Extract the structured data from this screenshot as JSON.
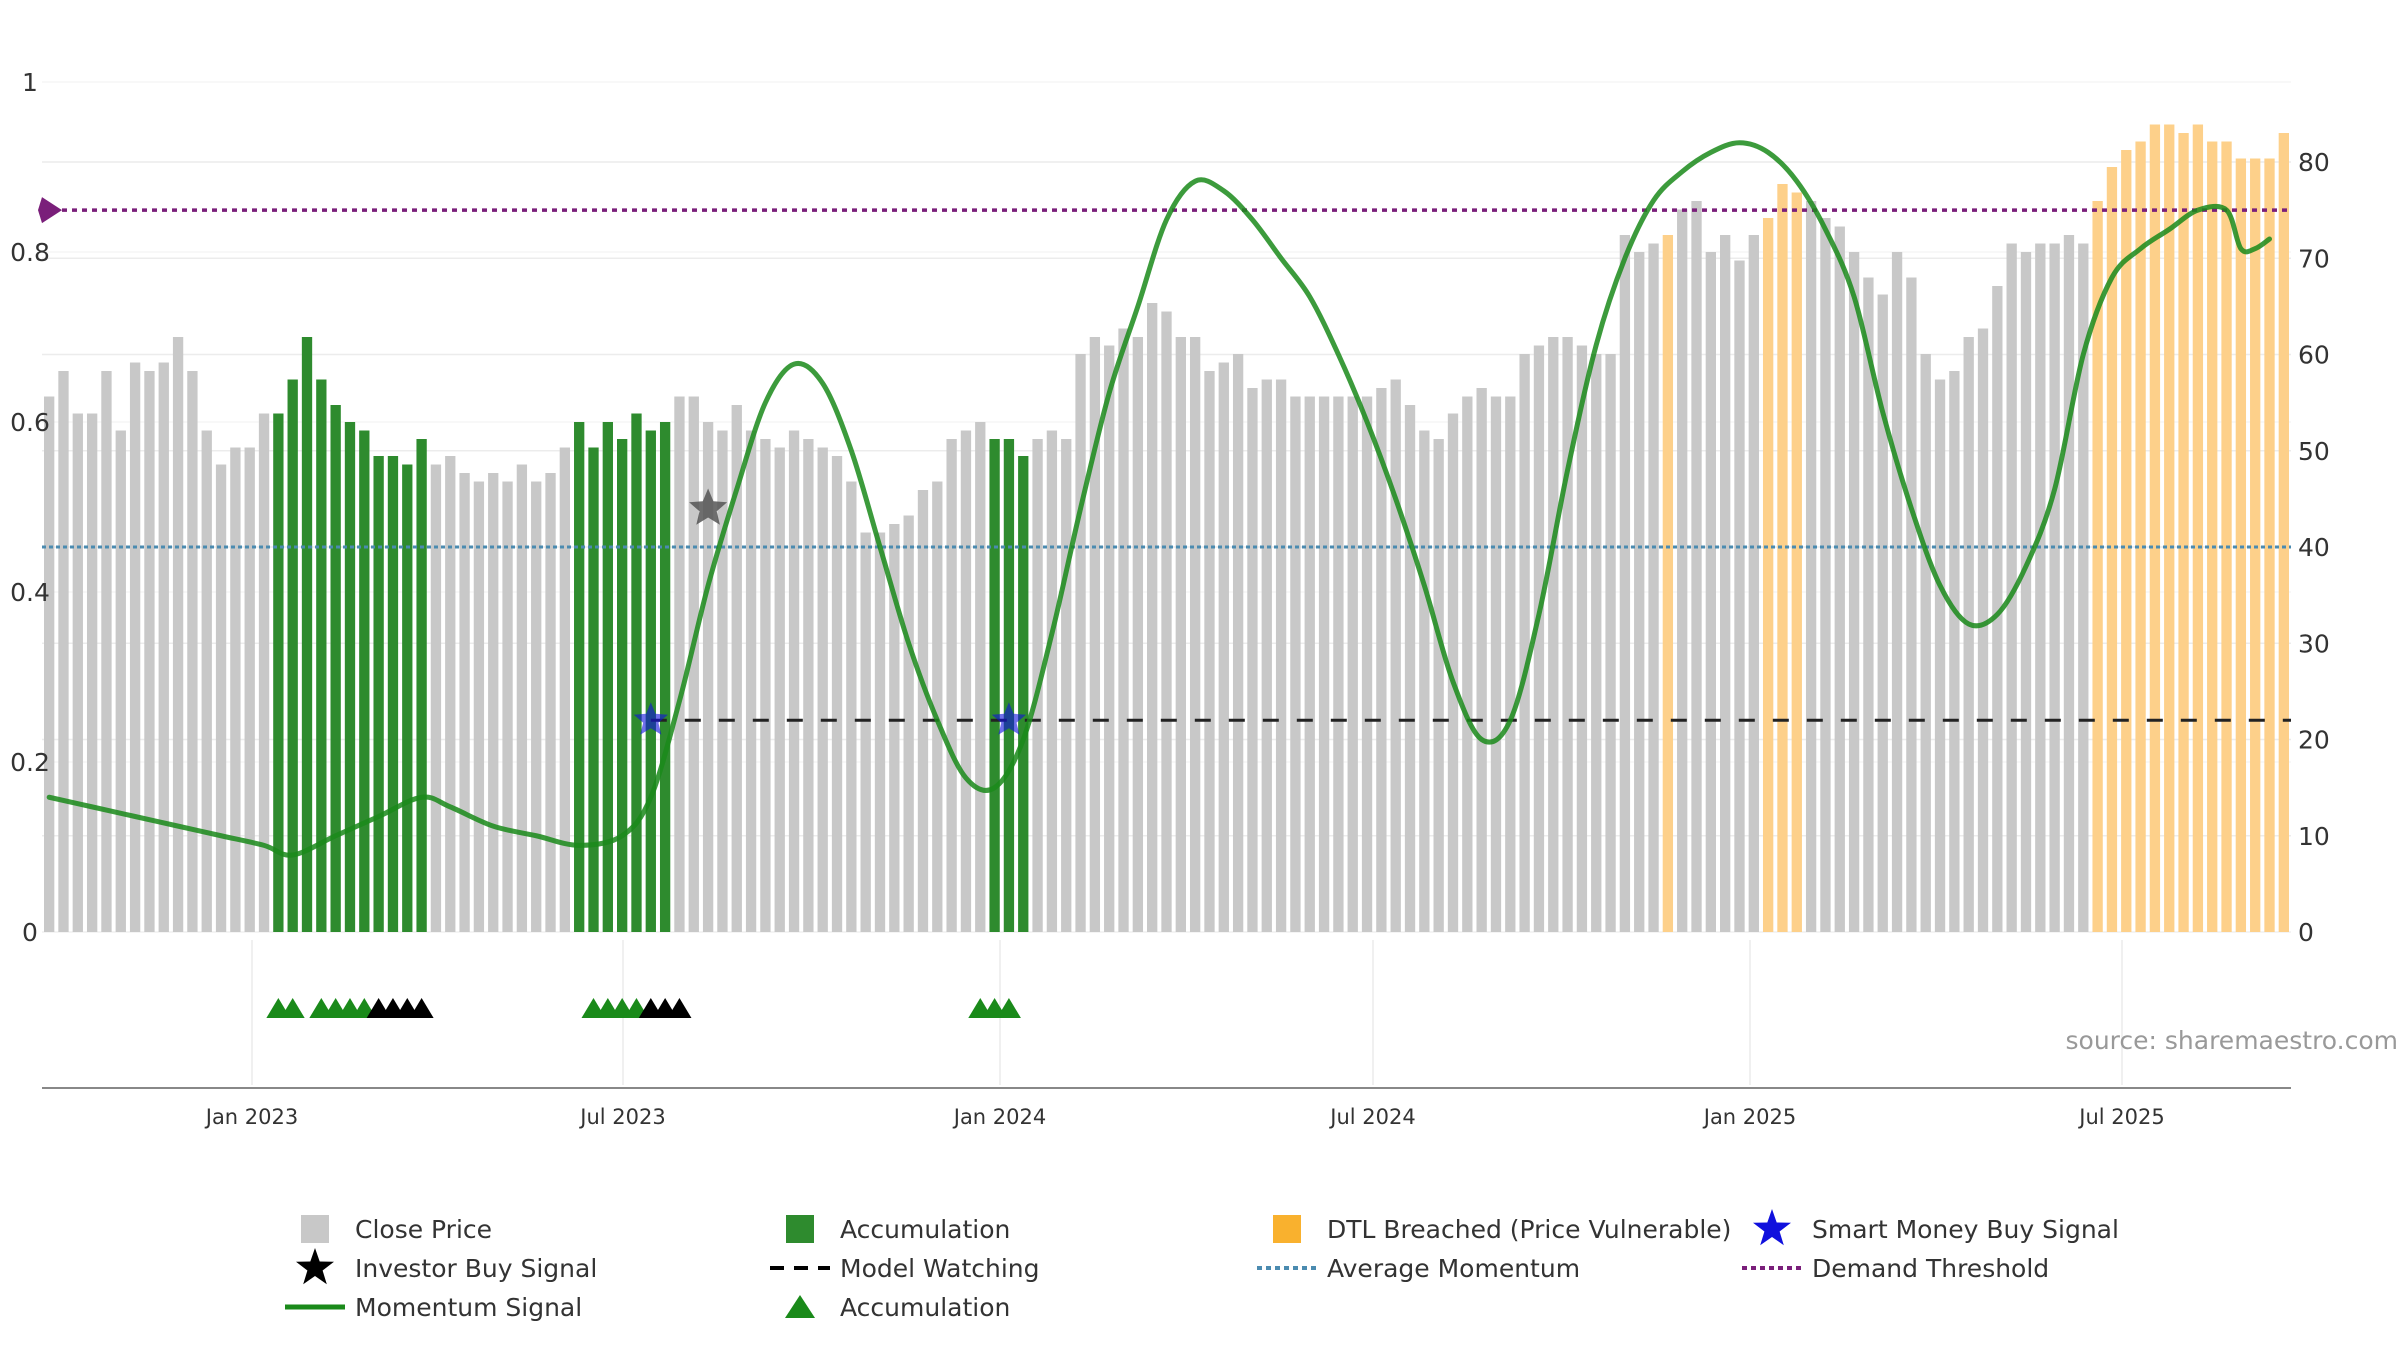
{
  "chart_data": {
    "type": "bar",
    "title": "",
    "source": "source: sharemaestro.com",
    "left_axis": {
      "ticks": [
        "0",
        "0.2",
        "0.4",
        "0.6",
        "0.8",
        "1"
      ],
      "ylim": [
        0,
        1
      ]
    },
    "right_axis": {
      "ticks": [
        "0",
        "10",
        "20",
        "30",
        "40",
        "50",
        "60",
        "70",
        "80"
      ],
      "ylim": [
        0,
        88
      ]
    },
    "x_axis": {
      "ticks": [
        "Jan 2023",
        "Jul 2023",
        "Jan 2024",
        "Jul 2024",
        "Jan 2025",
        "Jul 2025"
      ]
    },
    "colors": {
      "close": "#c8c8c8",
      "accumulation": "#2e8b2e",
      "dtl": "#fdd08a",
      "momentum": "#1a8a1a",
      "model_watching": "#222222",
      "average_momentum": "#4b8bb0",
      "demand_threshold": "#7a1f7a",
      "smart_money": "#1010dd",
      "investor_buy": "#555555"
    },
    "close_prices": [
      0.63,
      0.66,
      0.61,
      0.61,
      0.66,
      0.59,
      0.67,
      0.66,
      0.67,
      0.7,
      0.66,
      0.59,
      0.55,
      0.57,
      0.57,
      0.61,
      0.61,
      0.65,
      0.7,
      0.65,
      0.62,
      0.6,
      0.59,
      0.56,
      0.56,
      0.55,
      0.58,
      0.55,
      0.56,
      0.54,
      0.53,
      0.54,
      0.53,
      0.55,
      0.53,
      0.54,
      0.57,
      0.6,
      0.57,
      0.6,
      0.58,
      0.61,
      0.59,
      0.6,
      0.63,
      0.63,
      0.6,
      0.59,
      0.62,
      0.59,
      0.58,
      0.57,
      0.59,
      0.58,
      0.57,
      0.56,
      0.53,
      0.47,
      0.47,
      0.48,
      0.49,
      0.52,
      0.53,
      0.58,
      0.59,
      0.6,
      0.58,
      0.58,
      0.56,
      0.58,
      0.59,
      0.58,
      0.68,
      0.7,
      0.69,
      0.71,
      0.7,
      0.74,
      0.73,
      0.7,
      0.7,
      0.66,
      0.67,
      0.68,
      0.64,
      0.65,
      0.65,
      0.63,
      0.63,
      0.63,
      0.63,
      0.63,
      0.63,
      0.64,
      0.65,
      0.62,
      0.59,
      0.58,
      0.61,
      0.63,
      0.64,
      0.63,
      0.63,
      0.68,
      0.69,
      0.7,
      0.7,
      0.69,
      0.68,
      0.68,
      0.82,
      0.8,
      0.81,
      0.82,
      0.85,
      0.86,
      0.8,
      0.82,
      0.79,
      0.82,
      0.84,
      0.88,
      0.87,
      0.86,
      0.84,
      0.83,
      0.8,
      0.77,
      0.75,
      0.8,
      0.77,
      0.68,
      0.65,
      0.66,
      0.7,
      0.71,
      0.76,
      0.81,
      0.8,
      0.81,
      0.81,
      0.82,
      0.81,
      0.86,
      0.9,
      0.92,
      0.93,
      0.95,
      0.95,
      0.94,
      0.95,
      0.93,
      0.93,
      0.91,
      0.91,
      0.91,
      0.94
    ],
    "accumulation_ranges": [
      [
        16,
        18
      ],
      [
        19,
        26
      ],
      [
        37,
        43
      ],
      [
        66,
        68
      ]
    ],
    "dtl_ranges": [
      [
        113,
        113
      ],
      [
        120,
        122
      ],
      [
        143,
        156
      ]
    ],
    "momentum_signal": [
      [
        0,
        14
      ],
      [
        3,
        13
      ],
      [
        6,
        12
      ],
      [
        9,
        11
      ],
      [
        12,
        10
      ],
      [
        15,
        9
      ],
      [
        17,
        8
      ],
      [
        20,
        10
      ],
      [
        23,
        12
      ],
      [
        26,
        14
      ],
      [
        28,
        13
      ],
      [
        31,
        11
      ],
      [
        34,
        10
      ],
      [
        37,
        9
      ],
      [
        40,
        10
      ],
      [
        42,
        14
      ],
      [
        44,
        24
      ],
      [
        46,
        36
      ],
      [
        48,
        46
      ],
      [
        50,
        55
      ],
      [
        52,
        59
      ],
      [
        54,
        57
      ],
      [
        56,
        50
      ],
      [
        58,
        40
      ],
      [
        60,
        30
      ],
      [
        62,
        22
      ],
      [
        64,
        16
      ],
      [
        66,
        15
      ],
      [
        68,
        20
      ],
      [
        70,
        31
      ],
      [
        72,
        44
      ],
      [
        74,
        56
      ],
      [
        76,
        65
      ],
      [
        78,
        74
      ],
      [
        80,
        78
      ],
      [
        82,
        77
      ],
      [
        84,
        74
      ],
      [
        86,
        70
      ],
      [
        88,
        66
      ],
      [
        90,
        60
      ],
      [
        92,
        53
      ],
      [
        94,
        45
      ],
      [
        96,
        36
      ],
      [
        98,
        26
      ],
      [
        100,
        20
      ],
      [
        102,
        22
      ],
      [
        104,
        33
      ],
      [
        106,
        48
      ],
      [
        108,
        61
      ],
      [
        110,
        70
      ],
      [
        112,
        76
      ],
      [
        114,
        79
      ],
      [
        116,
        81
      ],
      [
        118,
        82
      ],
      [
        120,
        81
      ],
      [
        122,
        78
      ],
      [
        124,
        73
      ],
      [
        126,
        66
      ],
      [
        128,
        54
      ],
      [
        130,
        44
      ],
      [
        132,
        36
      ],
      [
        134,
        32
      ],
      [
        136,
        33
      ],
      [
        138,
        38
      ],
      [
        140,
        46
      ],
      [
        142,
        60
      ],
      [
        144,
        68
      ],
      [
        146,
        71
      ],
      [
        148,
        73
      ],
      [
        150,
        75
      ],
      [
        152,
        75
      ],
      [
        153,
        71
      ],
      [
        154,
        71
      ],
      [
        155,
        72
      ]
    ],
    "model_watching": {
      "value": 22,
      "from": 42,
      "to": 156
    },
    "average_momentum": 40,
    "demand_threshold": 75,
    "smart_money_buy_signals": [
      [
        42,
        22
      ],
      [
        67,
        22
      ]
    ],
    "investor_buy_signals": [
      [
        46,
        44
      ]
    ],
    "accumulation_markers": {
      "green": [
        16,
        17,
        19,
        20,
        21,
        22,
        38,
        39,
        40,
        41,
        65,
        66,
        67
      ],
      "black": [
        23,
        24,
        25,
        26,
        42,
        43,
        44
      ]
    },
    "legend": [
      {
        "key": "close",
        "label": "Close Price"
      },
      {
        "key": "accumulation_bar",
        "label": "Accumulation"
      },
      {
        "key": "dtl",
        "label": "DTL Breached (Price Vulnerable)"
      },
      {
        "key": "smart_money",
        "label": "Smart Money Buy Signal"
      },
      {
        "key": "investor_buy",
        "label": "Investor Buy Signal"
      },
      {
        "key": "model_watching",
        "label": "Model Watching"
      },
      {
        "key": "average_momentum",
        "label": "Average Momentum"
      },
      {
        "key": "demand_threshold",
        "label": "Demand Threshold"
      },
      {
        "key": "momentum",
        "label": "Momentum Signal"
      },
      {
        "key": "accumulation_marker",
        "label": "Accumulation"
      }
    ]
  }
}
